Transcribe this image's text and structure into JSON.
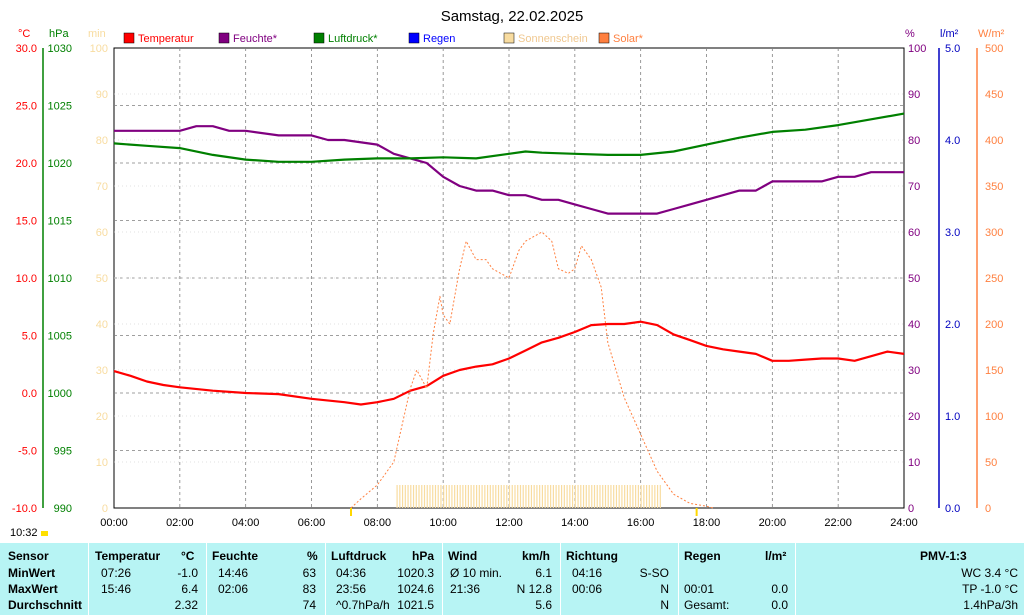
{
  "chart_data": {
    "type": "line",
    "title": "Samstag, 22.02.2025",
    "x_ticks": [
      "00:00",
      "02:00",
      "04:00",
      "06:00",
      "08:00",
      "10:00",
      "12:00",
      "14:00",
      "16:00",
      "18:00",
      "20:00",
      "22:00",
      "24:00"
    ],
    "axes": {
      "temp": {
        "unit": "°C",
        "range": [
          -10,
          30
        ],
        "ticks": [
          "30.0",
          "25.0",
          "20.0",
          "15.0",
          "10.0",
          "5.0",
          "0.0",
          "-5.0",
          "-10.0"
        ],
        "color": "#ff0000"
      },
      "pressure": {
        "unit": "hPa",
        "range": [
          990,
          1030
        ],
        "ticks": [
          "1030",
          "1025",
          "1020",
          "1015",
          "1010",
          "1005",
          "1000",
          "995",
          "990"
        ],
        "color": "#008000"
      },
      "sun_min": {
        "unit": "min",
        "range": [
          0,
          100
        ],
        "ticks": [
          "100",
          "90",
          "80",
          "70",
          "60",
          "50",
          "40",
          "30",
          "20",
          "10",
          "0"
        ],
        "color": "#f8dca0"
      },
      "humidity": {
        "unit": "%",
        "range": [
          0,
          100
        ],
        "ticks": [
          "100",
          "90",
          "80",
          "70",
          "60",
          "50",
          "40",
          "30",
          "20",
          "10",
          "0"
        ],
        "color": "#800080"
      },
      "rain": {
        "unit": "l/m²",
        "range": [
          0,
          5
        ],
        "ticks": [
          "5.0",
          "4.0",
          "3.0",
          "2.0",
          "1.0",
          "0.0"
        ],
        "color": "#0000c0"
      },
      "solar": {
        "unit": "W/m²",
        "range": [
          0,
          500
        ],
        "ticks": [
          "500",
          "450",
          "400",
          "350",
          "300",
          "250",
          "200",
          "150",
          "100",
          "50",
          "0"
        ],
        "color": "#ff8040"
      }
    },
    "legend": [
      {
        "name": "Temperatur",
        "color": "#ff0000"
      },
      {
        "name": "Feuchte*",
        "color": "#800080"
      },
      {
        "name": "Luftdruck*",
        "color": "#008000"
      },
      {
        "name": "Regen",
        "color": "#0000ff"
      },
      {
        "name": "Sonnenschein",
        "color": "#f8dca0"
      },
      {
        "name": "Solar*",
        "color": "#ff8040"
      }
    ],
    "series": [
      {
        "name": "Temperatur",
        "axis": "temp",
        "color": "#ff0000",
        "x": [
          0,
          0.5,
          1,
          1.5,
          2,
          3,
          4,
          5,
          6,
          7,
          7.5,
          8,
          8.5,
          9,
          9.5,
          10,
          10.5,
          11,
          11.5,
          12,
          12.5,
          13,
          13.5,
          14,
          14.5,
          15,
          15.5,
          16,
          16.5,
          17,
          17.5,
          18,
          18.5,
          19,
          19.5,
          20,
          20.5,
          21,
          21.5,
          22,
          22.5,
          23,
          23.5,
          24
        ],
        "y": [
          1.9,
          1.5,
          1.0,
          0.7,
          0.5,
          0.2,
          0,
          -0.1,
          -0.5,
          -0.8,
          -1.0,
          -0.8,
          -0.5,
          0.2,
          0.6,
          1.5,
          2.0,
          2.3,
          2.5,
          3.0,
          3.7,
          4.4,
          4.8,
          5.3,
          5.9,
          6.0,
          6.0,
          6.2,
          5.9,
          5.1,
          4.6,
          4.1,
          3.8,
          3.6,
          3.4,
          2.8,
          2.8,
          2.9,
          3.0,
          3.0,
          2.8,
          3.2,
          3.6,
          3.4
        ]
      },
      {
        "name": "Feuchte*",
        "axis": "humidity",
        "color": "#800080",
        "x": [
          0,
          1,
          2,
          2.5,
          3,
          3.5,
          4,
          5,
          6,
          6.5,
          7,
          8,
          8.5,
          9,
          9.5,
          10,
          10.5,
          11,
          11.5,
          12,
          12.5,
          13,
          13.5,
          14,
          14.5,
          15,
          15.5,
          16,
          16.5,
          17,
          17.5,
          18,
          18.5,
          19,
          19.5,
          20,
          20.5,
          21,
          21.5,
          22,
          22.5,
          23,
          23.5,
          24
        ],
        "y": [
          82,
          82,
          82,
          83,
          83,
          82,
          82,
          81,
          81,
          80,
          80,
          79,
          77,
          76,
          75,
          72,
          70,
          69,
          69,
          68,
          68,
          67,
          67,
          66,
          65,
          64,
          64,
          64,
          64,
          65,
          66,
          67,
          68,
          69,
          69,
          71,
          71,
          71,
          71,
          72,
          72,
          73,
          73,
          73
        ]
      },
      {
        "name": "Luftdruck*",
        "axis": "pressure",
        "color": "#008000",
        "x": [
          0,
          1,
          2,
          3,
          4,
          5,
          6,
          7,
          8,
          9,
          10,
          11,
          12,
          12.5,
          13,
          14,
          15,
          16,
          17,
          18,
          19,
          20,
          21,
          22,
          23,
          24
        ],
        "y": [
          1021.7,
          1021.5,
          1021.3,
          1020.7,
          1020.3,
          1020.1,
          1020.1,
          1020.3,
          1020.4,
          1020.4,
          1020.5,
          1020.4,
          1020.8,
          1021.0,
          1020.9,
          1020.8,
          1020.7,
          1020.7,
          1021.0,
          1021.6,
          1022.2,
          1022.7,
          1022.9,
          1023.3,
          1023.8,
          1024.3
        ]
      },
      {
        "name": "Solar*",
        "axis": "solar",
        "color": "#ff8040",
        "dashed": true,
        "x": [
          7.2,
          7.5,
          8,
          8.5,
          9,
          9.2,
          9.5,
          9.7,
          9.9,
          10,
          10.2,
          10.5,
          10.7,
          11,
          11.3,
          11.5,
          12,
          12.3,
          12.5,
          13,
          13.3,
          13.5,
          13.8,
          14,
          14.2,
          14.5,
          14.8,
          15,
          15.5,
          16,
          16.5,
          17,
          17.5,
          18,
          18.2
        ],
        "y": [
          0,
          10,
          25,
          50,
          130,
          150,
          130,
          190,
          230,
          210,
          200,
          260,
          290,
          270,
          270,
          260,
          250,
          280,
          290,
          300,
          290,
          260,
          255,
          260,
          285,
          270,
          240,
          180,
          120,
          80,
          40,
          15,
          5,
          2,
          0
        ]
      }
    ],
    "bars": {
      "name": "Sonnenschein",
      "axis": "sun_min",
      "color": "#f8dca0",
      "x_start": 8.6,
      "x_end": 16.6,
      "value": 5
    }
  },
  "stamp": {
    "time": "10:32"
  },
  "table": {
    "headers": {
      "sensor": "Sensor",
      "temp": "Temperatur",
      "temp_unit": "°C",
      "hum": "Feuchte",
      "hum_unit": "%",
      "press": "Luftdruck",
      "press_unit": "hPa",
      "wind": "Wind",
      "wind_unit": "km/h",
      "dir": "Richtung",
      "rain": "Regen",
      "rain_unit": "l/m²",
      "pmv": "PMV-1:3"
    },
    "rows": [
      {
        "label": "MinWert",
        "temp_time": "07:26",
        "temp_val": "-1.0",
        "hum_time": "14:46",
        "hum_val": "63",
        "press_time": "04:36",
        "press_val": "1020.3",
        "wind_time": "Ø 10 min.",
        "wind_val": "6.1",
        "dir_time": "04:16",
        "dir_val": "S-SO",
        "rain_time": "",
        "rain_val": "",
        "pmv": "WC 3.4 °C"
      },
      {
        "label": "MaxWert",
        "temp_time": "15:46",
        "temp_val": "6.4",
        "hum_time": "02:06",
        "hum_val": "83",
        "press_time": "23:56",
        "press_val": "1024.6",
        "wind_time": "21:36",
        "wind_val": "N 12.8",
        "dir_time": "00:06",
        "dir_val": "N",
        "rain_time": "00:01",
        "rain_val": "0.0",
        "pmv": "TP -1.0 °C"
      },
      {
        "label": "Durchschnitt",
        "temp_time": "",
        "temp_val": "2.32",
        "hum_time": "",
        "hum_val": "74",
        "press_time": "^0.7hPa/h",
        "press_val": "1021.5",
        "wind_time": "",
        "wind_val": "5.6",
        "dir_time": "",
        "dir_val": "N",
        "rain_time": "Gesamt:",
        "rain_val": "0.0",
        "pmv": "1.4hPa/3h"
      }
    ]
  }
}
